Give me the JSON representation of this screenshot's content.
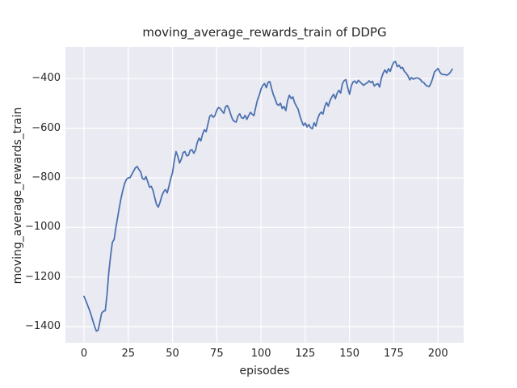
{
  "colors": {
    "figure_background": "#ffffff",
    "axes_background": "#eaeaf2",
    "grid": "#ffffff",
    "text": "#262626",
    "line": "#4c72b0"
  },
  "chart_data": {
    "type": "line",
    "style": "seaborn-darkgrid",
    "title": "moving_average_rewards_train of DDPG",
    "xlabel": "episodes",
    "ylabel": "moving_average_rewards_train",
    "legend": "none",
    "grid": true,
    "xlim": [
      -10.5,
      214.5
    ],
    "ylim": [
      -1465,
      -272
    ],
    "xtick_values": [
      0,
      25,
      50,
      75,
      100,
      125,
      150,
      175,
      200
    ],
    "xtick_labels": [
      "0",
      "25",
      "50",
      "75",
      "100",
      "125",
      "150",
      "175",
      "200"
    ],
    "ytick_values": [
      -400,
      -600,
      -800,
      -1000,
      -1200,
      -1400
    ],
    "ytick_labels": [
      "−400",
      "−600",
      "−800",
      "−1000",
      "−1200",
      "−1400"
    ],
    "x_start": 0,
    "x_step": 1,
    "series": [
      {
        "name": "moving_average_rewards_train",
        "color": "#4c72b0",
        "values": [
          -1278,
          -1295,
          -1313,
          -1332,
          -1353,
          -1377,
          -1400,
          -1418,
          -1414,
          -1380,
          -1345,
          -1338,
          -1336,
          -1270,
          -1180,
          -1115,
          -1060,
          -1048,
          -1002,
          -960,
          -918,
          -880,
          -848,
          -822,
          -806,
          -800,
          -799,
          -786,
          -773,
          -760,
          -754,
          -766,
          -776,
          -802,
          -807,
          -795,
          -816,
          -838,
          -834,
          -852,
          -882,
          -908,
          -918,
          -898,
          -872,
          -856,
          -847,
          -861,
          -833,
          -803,
          -778,
          -730,
          -694,
          -714,
          -740,
          -724,
          -698,
          -694,
          -711,
          -709,
          -689,
          -687,
          -701,
          -689,
          -658,
          -640,
          -651,
          -624,
          -606,
          -614,
          -583,
          -552,
          -546,
          -556,
          -549,
          -528,
          -516,
          -521,
          -531,
          -540,
          -513,
          -509,
          -524,
          -547,
          -566,
          -573,
          -575,
          -551,
          -542,
          -558,
          -560,
          -548,
          -564,
          -549,
          -536,
          -544,
          -549,
          -516,
          -486,
          -468,
          -442,
          -427,
          -420,
          -437,
          -414,
          -412,
          -441,
          -466,
          -482,
          -503,
          -508,
          -499,
          -521,
          -512,
          -529,
          -489,
          -467,
          -480,
          -474,
          -497,
          -511,
          -524,
          -551,
          -572,
          -589,
          -579,
          -595,
          -585,
          -598,
          -602,
          -578,
          -591,
          -562,
          -544,
          -535,
          -543,
          -513,
          -496,
          -511,
          -488,
          -474,
          -463,
          -481,
          -459,
          -447,
          -458,
          -420,
          -408,
          -404,
          -438,
          -463,
          -429,
          -413,
          -410,
          -419,
          -407,
          -413,
          -421,
          -427,
          -421,
          -417,
          -409,
          -416,
          -411,
          -430,
          -424,
          -420,
          -434,
          -399,
          -378,
          -365,
          -377,
          -360,
          -371,
          -349,
          -334,
          -331,
          -352,
          -346,
          -358,
          -355,
          -371,
          -378,
          -389,
          -405,
          -396,
          -402,
          -399,
          -397,
          -399,
          -403,
          -413,
          -416,
          -426,
          -430,
          -432,
          -419,
          -398,
          -373,
          -367,
          -359,
          -373,
          -382,
          -383,
          -384,
          -386,
          -382,
          -374,
          -362
        ]
      }
    ]
  }
}
